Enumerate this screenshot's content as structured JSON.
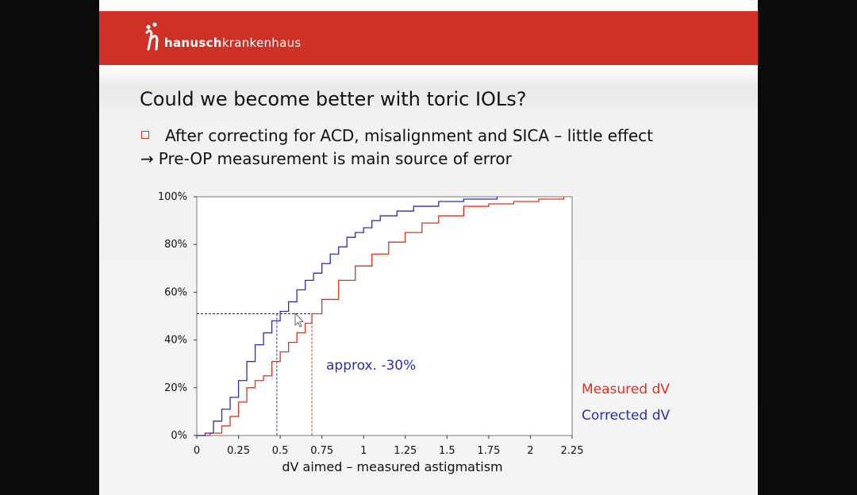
{
  "header": {
    "brand_bold": "hanusch",
    "brand_light": "krankenhaus",
    "bar_color": "#cf3127"
  },
  "slide": {
    "title": "Could we become better with toric IOLs?",
    "bullet1": "After correcting for ACD, misalignment and SICA – little effect",
    "bullet2_arrow": "→",
    "bullet2": "Pre-OP measurement is main source of error"
  },
  "chart_data": {
    "type": "line",
    "title": "",
    "xlabel": "dV aimed – measured astigmatism",
    "ylabel": "",
    "xlim": [
      0,
      2.25
    ],
    "ylim": [
      0,
      100
    ],
    "x_ticks": [
      "0",
      "0.25",
      "0.5",
      "0.75",
      "1",
      "1.25",
      "1.5",
      "1.75",
      "2",
      "2.25"
    ],
    "y_ticks": [
      "0%",
      "20%",
      "40%",
      "60%",
      "80%",
      "100%"
    ],
    "grid": false,
    "step": true,
    "series": [
      {
        "name": "Measured dV",
        "color": "#e0301e",
        "points": [
          [
            0,
            0
          ],
          [
            0.08,
            1
          ],
          [
            0.15,
            4
          ],
          [
            0.2,
            8
          ],
          [
            0.25,
            14
          ],
          [
            0.3,
            20
          ],
          [
            0.35,
            23
          ],
          [
            0.4,
            25
          ],
          [
            0.45,
            31
          ],
          [
            0.5,
            35
          ],
          [
            0.55,
            39
          ],
          [
            0.6,
            43
          ],
          [
            0.65,
            47
          ],
          [
            0.69,
            51
          ],
          [
            0.75,
            57
          ],
          [
            0.85,
            65
          ],
          [
            0.95,
            71
          ],
          [
            1.05,
            76
          ],
          [
            1.15,
            81
          ],
          [
            1.25,
            85
          ],
          [
            1.35,
            89
          ],
          [
            1.45,
            92
          ],
          [
            1.6,
            96
          ],
          [
            1.75,
            97
          ],
          [
            1.9,
            98
          ],
          [
            2.05,
            99
          ],
          [
            2.2,
            100
          ]
        ]
      },
      {
        "name": "Corrected dV",
        "color": "#2a2fb0",
        "points": [
          [
            0,
            0
          ],
          [
            0.05,
            1
          ],
          [
            0.1,
            6
          ],
          [
            0.15,
            11
          ],
          [
            0.2,
            16
          ],
          [
            0.25,
            23
          ],
          [
            0.3,
            31
          ],
          [
            0.35,
            38
          ],
          [
            0.4,
            43
          ],
          [
            0.45,
            48
          ],
          [
            0.5,
            52
          ],
          [
            0.55,
            56
          ],
          [
            0.6,
            61
          ],
          [
            0.65,
            65
          ],
          [
            0.7,
            68
          ],
          [
            0.75,
            72
          ],
          [
            0.8,
            76
          ],
          [
            0.85,
            79
          ],
          [
            0.9,
            83
          ],
          [
            0.95,
            85
          ],
          [
            1.0,
            87
          ],
          [
            1.05,
            90
          ],
          [
            1.1,
            92
          ],
          [
            1.2,
            94
          ],
          [
            1.3,
            96
          ],
          [
            1.45,
            98
          ],
          [
            1.6,
            99
          ],
          [
            1.8,
            100
          ]
        ]
      }
    ],
    "annotations": [
      {
        "text": "approx. -30%",
        "color": "#2a2fb0"
      }
    ],
    "reference_level": 51,
    "reference_x": [
      0.48,
      0.69
    ]
  }
}
